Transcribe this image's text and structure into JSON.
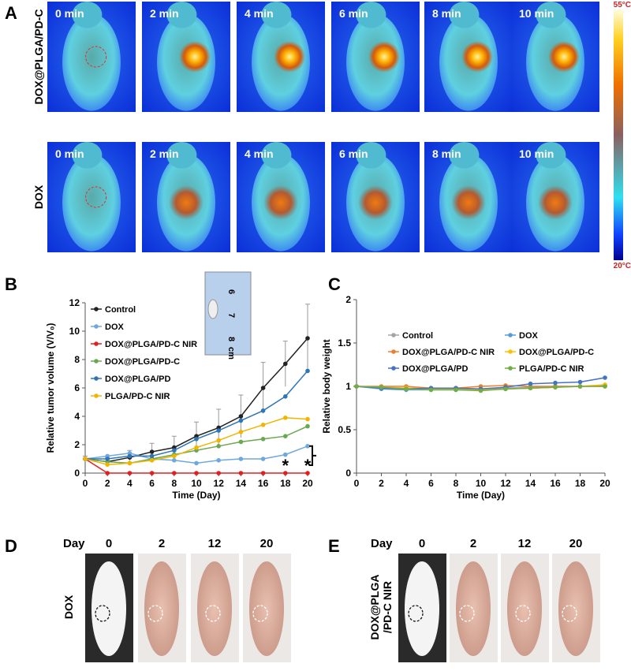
{
  "panel_a": {
    "label": "A",
    "rows": [
      {
        "label": "DOX@PLGA/PD-C",
        "times": [
          "0 min",
          "2 min",
          "4 min",
          "6 min",
          "8 min",
          "10 min"
        ]
      },
      {
        "label": "DOX",
        "times": [
          "0 min",
          "2 min",
          "4 min",
          "6 min",
          "8 min",
          "10 min"
        ]
      }
    ],
    "scale_max": "55°C",
    "scale_min": "20°C"
  },
  "chart_data": [
    {
      "type": "line",
      "label": "B",
      "xlabel": "Time (Day)",
      "ylabel": "Relative tumor volume (V/V₀)",
      "x": [
        0,
        2,
        4,
        6,
        8,
        10,
        12,
        14,
        16,
        18,
        20
      ],
      "xlim": [
        0,
        20
      ],
      "xticks": [
        0,
        2,
        4,
        6,
        8,
        10,
        12,
        14,
        16,
        18,
        20
      ],
      "ylim": [
        0,
        12
      ],
      "yticks": [
        0,
        2,
        4,
        6,
        8,
        10,
        12
      ],
      "legend_columns": 1,
      "inset_labels": [
        "6",
        "7",
        "8",
        "cm"
      ],
      "annotations": [
        {
          "text": "*",
          "x": 18
        },
        {
          "text": "*",
          "x": 20
        }
      ],
      "series": [
        {
          "name": "Control",
          "color": "#222222",
          "values": [
            1,
            0.8,
            1.1,
            1.5,
            1.8,
            2.6,
            3.2,
            4.0,
            6.0,
            7.7,
            9.5
          ],
          "errors": [
            0.2,
            0.3,
            0.5,
            0.6,
            0.8,
            1.0,
            1.3,
            1.5,
            1.8,
            1.6,
            2.4
          ]
        },
        {
          "name": "DOX",
          "color": "#6fa8dc",
          "values": [
            1,
            1.2,
            1.4,
            1.0,
            0.9,
            0.7,
            0.9,
            1.0,
            1.0,
            1.3,
            1.9
          ]
        },
        {
          "name": "DOX@PLGA/PD-C NIR",
          "color": "#e02020",
          "values": [
            1,
            0,
            0,
            0,
            0,
            0,
            0,
            0,
            0,
            0,
            0
          ]
        },
        {
          "name": "DOX@PLGA/PD-C",
          "color": "#6aa84f",
          "values": [
            1,
            0.8,
            0.7,
            1.0,
            1.3,
            1.6,
            1.9,
            2.2,
            2.4,
            2.6,
            3.3
          ]
        },
        {
          "name": "DOX@PLGA/PD",
          "color": "#2e75b6",
          "values": [
            1,
            1.0,
            1.2,
            1.2,
            1.6,
            2.4,
            3.0,
            3.7,
            4.4,
            5.4,
            7.2
          ]
        },
        {
          "name": "PLGA/PD-C NIR",
          "color": "#f1b500",
          "values": [
            1,
            0.6,
            0.7,
            0.9,
            1.2,
            1.8,
            2.3,
            2.9,
            3.4,
            3.9,
            3.8
          ]
        }
      ]
    },
    {
      "type": "line",
      "label": "C",
      "xlabel": "Time (Day)",
      "ylabel": "Relative body weight",
      "x": [
        0,
        2,
        4,
        6,
        8,
        10,
        12,
        14,
        16,
        18,
        20
      ],
      "xlim": [
        0,
        20
      ],
      "xticks": [
        0,
        2,
        4,
        6,
        8,
        10,
        12,
        14,
        16,
        18,
        20
      ],
      "ylim": [
        0,
        2
      ],
      "yticks": [
        0,
        0.5,
        1,
        1.5,
        2
      ],
      "legend_columns": 2,
      "series": [
        {
          "name": "Control",
          "color": "#a5a5a5",
          "values": [
            1,
            0.99,
            0.98,
            0.97,
            0.97,
            0.97,
            0.98,
            0.99,
            1.0,
            1.0,
            1.01
          ]
        },
        {
          "name": "DOX",
          "color": "#5b9bd5",
          "values": [
            1,
            0.97,
            0.96,
            0.96,
            0.96,
            0.96,
            0.97,
            0.98,
            0.99,
            1.0,
            1.01
          ]
        },
        {
          "name": "DOX@PLGA/PD-C NIR",
          "color": "#ed7d31",
          "values": [
            1,
            1.0,
            1.0,
            0.98,
            0.98,
            1.0,
            1.01,
            1.0,
            1.0,
            1.0,
            1.0
          ]
        },
        {
          "name": "DOX@PLGA/PD-C",
          "color": "#ffc000",
          "values": [
            1,
            0.99,
            0.98,
            0.97,
            0.97,
            0.96,
            0.97,
            0.98,
            0.99,
            1.0,
            1.02
          ]
        },
        {
          "name": "DOX@PLGA/PD",
          "color": "#4472c4",
          "values": [
            1,
            0.98,
            0.97,
            0.98,
            0.98,
            0.97,
            0.99,
            1.03,
            1.04,
            1.05,
            1.1
          ]
        },
        {
          "name": "PLGA/PD-C NIR",
          "color": "#70ad47",
          "values": [
            1,
            0.99,
            0.97,
            0.96,
            0.96,
            0.95,
            0.97,
            0.98,
            0.99,
            1.0,
            1.0
          ]
        }
      ]
    }
  ],
  "panel_d": {
    "label": "D",
    "day_label": "Day",
    "days": [
      "0",
      "2",
      "12",
      "20"
    ],
    "row_label": [
      "DOX"
    ]
  },
  "panel_e": {
    "label": "E",
    "day_label": "Day",
    "days": [
      "0",
      "2",
      "12",
      "20"
    ],
    "row_label": [
      "DOX@PLGA",
      "/PD-C NIR"
    ]
  }
}
